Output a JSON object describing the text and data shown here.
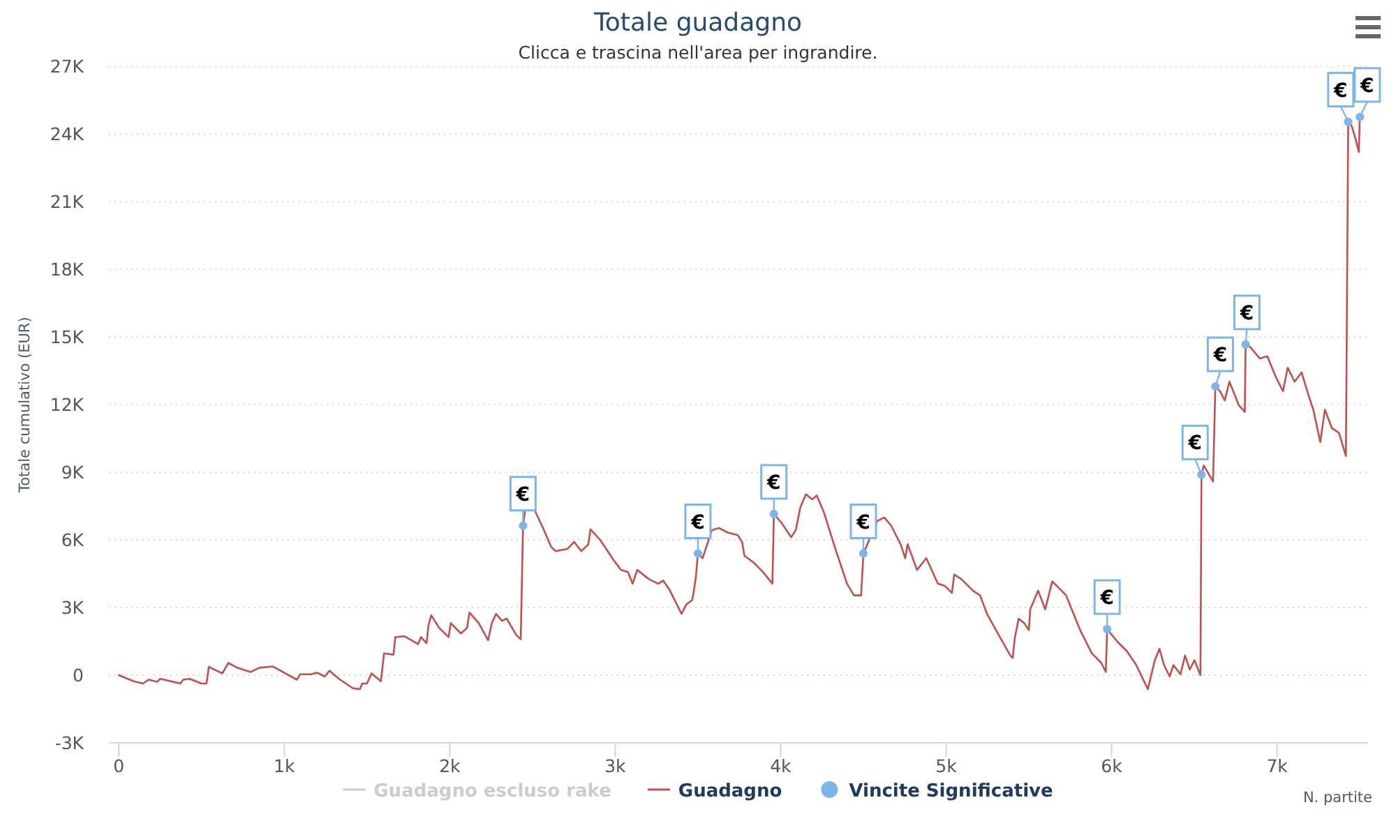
{
  "chart_data": {
    "type": "line",
    "title": "Totale guadagno",
    "subtitle": "Clicca e trascina nell'area per ingrandire.",
    "xlabel": "N. partite",
    "ylabel": "Totale cumulativo (EUR)",
    "xlim": [
      -60,
      7550
    ],
    "ylim": [
      -3000,
      27000
    ],
    "xticks": [
      0,
      {
        "value": 1000,
        "label": "1k"
      },
      {
        "value": 2000,
        "label": "2k"
      },
      {
        "value": 3000,
        "label": "3k"
      },
      {
        "value": 4000,
        "label": "4k"
      },
      {
        "value": 5000,
        "label": "5k"
      },
      {
        "value": 6000,
        "label": "6k"
      },
      {
        "value": 7000,
        "label": "7k"
      }
    ],
    "yticks": [
      {
        "value": -3000,
        "label": "-3K"
      },
      0,
      {
        "value": 3000,
        "label": "3K"
      },
      {
        "value": 6000,
        "label": "6K"
      },
      {
        "value": 9000,
        "label": "9K"
      },
      {
        "value": 12000,
        "label": "12K"
      },
      {
        "value": 15000,
        "label": "15K"
      },
      {
        "value": 18000,
        "label": "18K"
      },
      {
        "value": 21000,
        "label": "21K"
      },
      {
        "value": 24000,
        "label": "24K"
      },
      {
        "value": 27000,
        "label": "27K"
      }
    ],
    "grid": "y",
    "legend": "bottom",
    "series": [
      {
        "name": "Guadagno escluso rake",
        "color": "#cccccc"
      },
      {
        "name": "Guadagno",
        "color": "#c0504d",
        "x": [
          0,
          90,
          146,
          180,
          231,
          251,
          372,
          389,
          428,
          499,
          530,
          544,
          626,
          662,
          710,
          795,
          851,
          930,
          1076,
          1096,
          1161,
          1200,
          1245,
          1273,
          1330,
          1415,
          1457,
          1471,
          1500,
          1527,
          1584,
          1603,
          1660,
          1671,
          1725,
          1809,
          1826,
          1860,
          1871,
          1888,
          1936,
          1993,
          2006,
          2068,
          2105,
          2119,
          2175,
          2232,
          2254,
          2280,
          2316,
          2344,
          2401,
          2429,
          2443,
          2457,
          2505,
          2570,
          2612,
          2640,
          2710,
          2752,
          2795,
          2837,
          2851,
          2908,
          2992,
          3035,
          3077,
          3105,
          3133,
          3204,
          3260,
          3290,
          3331,
          3401,
          3429,
          3466,
          3486,
          3500,
          3528,
          3584,
          3626,
          3683,
          3739,
          3767,
          3781,
          3838,
          3894,
          3950,
          3959,
          4007,
          4063,
          4091,
          4119,
          4153,
          4190,
          4218,
          4260,
          4331,
          4401,
          4443,
          4486,
          4500,
          4584,
          4626,
          4668,
          4725,
          4753,
          4767,
          4824,
          4880,
          4950,
          4993,
          5035,
          5049,
          5092,
          5162,
          5205,
          5247,
          5317,
          5388,
          5402,
          5416,
          5438,
          5472,
          5500,
          5508,
          5556,
          5599,
          5641,
          5669,
          5725,
          5810,
          5880,
          5937,
          5965,
          5973,
          6036,
          6092,
          6149,
          6219,
          6261,
          6289,
          6317,
          6351,
          6374,
          6416,
          6444,
          6472,
          6501,
          6537,
          6543,
          6557,
          6613,
          6627,
          6655,
          6684,
          6712,
          6768,
          6805,
          6810,
          6838,
          6895,
          6941,
          6993,
          7036,
          7064,
          7106,
          7148,
          7191,
          7219,
          7261,
          7289,
          7331,
          7374,
          7416,
          7430,
          7450,
          7473,
          7494,
          7500
        ],
        "values": [
          0,
          -270,
          -370,
          -200,
          -290,
          -160,
          -370,
          -200,
          -160,
          -370,
          -370,
          370,
          80,
          550,
          350,
          140,
          330,
          390,
          -200,
          40,
          40,
          110,
          -60,
          200,
          -160,
          -580,
          -620,
          -370,
          -370,
          80,
          -270,
          970,
          910,
          1690,
          1730,
          1380,
          1690,
          1420,
          2200,
          2660,
          2100,
          1690,
          2310,
          1850,
          2100,
          2780,
          2310,
          1550,
          2310,
          2720,
          2410,
          2510,
          1790,
          1590,
          6630,
          7350,
          7450,
          6430,
          5700,
          5500,
          5600,
          5910,
          5500,
          5800,
          6470,
          6010,
          5090,
          4670,
          4570,
          4060,
          4670,
          4260,
          4060,
          4200,
          3750,
          2720,
          3130,
          3340,
          4260,
          5400,
          5190,
          6430,
          6530,
          6320,
          6220,
          5910,
          5300,
          4990,
          4570,
          4060,
          7150,
          6740,
          6120,
          6430,
          7450,
          8030,
          7800,
          7970,
          7250,
          5600,
          4060,
          3540,
          3540,
          5400,
          6840,
          7000,
          6630,
          5810,
          5190,
          5810,
          4670,
          5190,
          4060,
          3960,
          3650,
          4470,
          4260,
          3750,
          3540,
          2720,
          1790,
          870,
          760,
          1690,
          2510,
          2310,
          2000,
          2920,
          3750,
          2920,
          4160,
          3960,
          3540,
          2000,
          970,
          550,
          140,
          2040,
          1480,
          1070,
          450,
          -620,
          660,
          1170,
          450,
          -60,
          450,
          40,
          870,
          250,
          660,
          0,
          8900,
          9300,
          8590,
          12810,
          12600,
          12190,
          13020,
          11990,
          11680,
          14670,
          14560,
          14050,
          14150,
          13220,
          12600,
          13640,
          13020,
          13430,
          12400,
          11780,
          10340,
          11780,
          10960,
          10750,
          9720,
          24550,
          24380,
          23830,
          23210,
          24760
        ]
      },
      {
        "name": "Vincite Significative",
        "type": "scatter",
        "marker": "circle",
        "color": "#7cb5ec",
        "x": [
          2443,
          3500,
          3959,
          4500,
          5973,
          6543,
          6627,
          6810,
          7430,
          7500
        ],
        "values": [
          6630,
          5400,
          7150,
          5400,
          2040,
          8900,
          12810,
          14670,
          24550,
          24760
        ]
      }
    ],
    "annotations": [
      {
        "text": "€",
        "x": 2443,
        "y": 6630
      },
      {
        "text": "€",
        "x": 3500,
        "y": 5400
      },
      {
        "text": "€",
        "x": 3959,
        "y": 7150
      },
      {
        "text": "€",
        "x": 4500,
        "y": 5400
      },
      {
        "text": "€",
        "x": 5973,
        "y": 2040
      },
      {
        "text": "€",
        "x": 6543,
        "y": 8900
      },
      {
        "text": "€",
        "x": 6627,
        "y": 12810
      },
      {
        "text": "€",
        "x": 6810,
        "y": 14670
      },
      {
        "text": "€",
        "x": 7430,
        "y": 24550
      },
      {
        "text": "€",
        "x": 7500,
        "y": 24760
      }
    ]
  }
}
